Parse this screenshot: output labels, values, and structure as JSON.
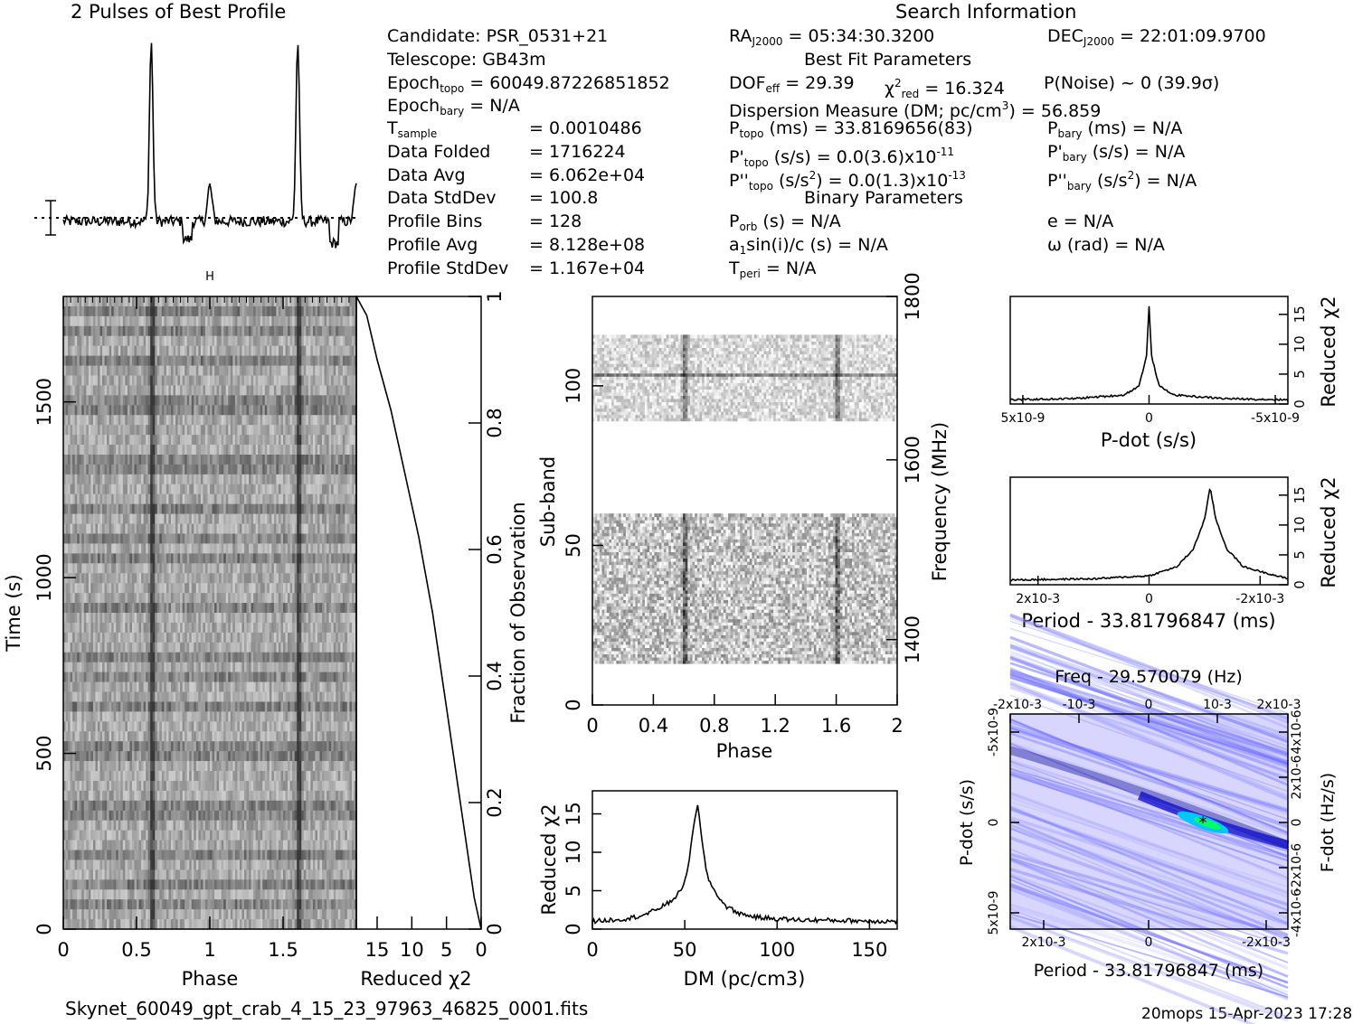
{
  "profile_title": "2 Pulses of Best Profile",
  "search_title": "Search Information",
  "footer_file": "Skynet_60049_gpt_crab_4_15_23_97963_46825_0001.fits",
  "footer_stamp": "20mops 15-Apr-2023 17:28",
  "candidate_info": {
    "candidate": "Candidate:  PSR_0531+21",
    "telescope": "Telescope:  GB43m",
    "epoch_topo_label": "Epoch",
    "epoch_topo_sub": "topo",
    "epoch_topo_val": " = 60049.87226851852",
    "epoch_bary_label": "Epoch",
    "epoch_bary_sub": "bary",
    "epoch_bary_val": " = N/A",
    "tsample_label": "T",
    "tsample_sub": "sample",
    "tsample_val": "=   0.0010486",
    "data_folded_label": "Data Folded",
    "data_folded_val": "=   1716224",
    "data_avg_label": "Data Avg",
    "data_avg_val": "=   6.062e+04",
    "data_std_label": "Data StdDev",
    "data_std_val": "=   100.8",
    "profile_bins_label": "Profile Bins",
    "profile_bins_val": "=   128",
    "profile_avg_label": "Profile Avg",
    "profile_avg_val": "=   8.128e+08",
    "profile_std_label": "Profile StdDev",
    "profile_std_val": "=   1.167e+04"
  },
  "search_info": {
    "ra_label": "RA",
    "ra_sub": "J2000",
    "ra_val": " = 05:34:30.3200",
    "dec_label": "DEC",
    "dec_sub": "J2000",
    "dec_val": " = 22:01:09.9700",
    "best_fit_title": "Best Fit Parameters",
    "dof_label": "DOF",
    "dof_sub": "eff",
    "dof_val": " = 29.39",
    "chi_label": "χ",
    "chi_sup": "2",
    "chi_sub": "red",
    "chi_val": " = 16.324",
    "pnoise": "P(Noise) ~ 0   (39.9σ)",
    "dm_text": "Dispersion Measure (DM; pc/cm",
    "dm_sup": "3",
    "dm_val": ") = 56.859",
    "ptopo_label": "P",
    "ptopo_sub": "topo",
    "ptopo_val": " (ms) =  33.8169656(83)",
    "pbary_label": "P",
    "pbary_sub": "bary",
    "pbary_val": " (ms) = N/A",
    "pdtopo_label": "P'",
    "pdtopo_sub": "topo",
    "pdtopo_val": " (s/s) = 0.0(3.6)x10",
    "pdtopo_exp": "-11",
    "pdbary_label": "P'",
    "pdbary_sub": "bary",
    "pdbary_val": " (s/s) = N/A",
    "pddtopo_label": "P''",
    "pddtopo_sub": "topo",
    "pddtopo_val": " (s/s",
    "pddtopo_sup": "2",
    "pddtopo_val2": ") = 0.0(1.3)x10",
    "pddtopo_exp": "-13",
    "pddbary_label": "P''",
    "pddbary_sub": "bary",
    "pddbary_val": " (s/s",
    "pddbary_sup": "2",
    "pddbary_val2": ") = N/A",
    "binary_title": "Binary Parameters",
    "porb_label": "P",
    "porb_sub": "orb",
    "porb_val": " (s) = N/A",
    "e_text": "e = N/A",
    "a1_label": "a",
    "a1_sub": "1",
    "a1_val": "sin(i)/c (s) = N/A",
    "omega_text": "ω (rad) = N/A",
    "tperi_label": "T",
    "tperi_sub": "peri",
    "tperi_val": " = N/A"
  },
  "chart_data": [
    {
      "id": "profile",
      "type": "line",
      "title": "2 Pulses of Best Profile",
      "x": "phase 0–2 (two pulses)",
      "peaks": [
        {
          "phase": 0.6,
          "height": 1.0
        },
        {
          "phase": 1.6,
          "height": 1.0
        }
      ],
      "interpulse": [
        {
          "phase": 1.0,
          "height": 0.2
        },
        {
          "phase": 2.0,
          "height": 0.2
        }
      ]
    },
    {
      "id": "time-phase",
      "type": "heatmap",
      "xlabel": "Phase",
      "ylabel": "Time (s)",
      "x_ticks": [
        "0",
        "0.5",
        "1",
        "1.5"
      ],
      "y_ticks": [
        "0",
        "500",
        "1000",
        "1500"
      ],
      "xlim": [
        0,
        2
      ],
      "ylim": [
        0,
        1800
      ],
      "pulse_columns": [
        0.6,
        1.6
      ]
    },
    {
      "id": "chi-vs-time",
      "type": "line",
      "xlabel": "Reduced χ2",
      "ylabel": "Fraction of Observation",
      "x_ticks": [
        "15",
        "10",
        "5",
        "0"
      ],
      "y_ticks": [
        "0",
        "0.2",
        "0.4",
        "0.6",
        "0.8",
        "1"
      ],
      "xlim": [
        18,
        0
      ],
      "ylim": [
        0,
        1
      ],
      "points": [
        [
          0,
          0
        ],
        [
          1,
          0.05
        ],
        [
          3,
          0.2
        ],
        [
          5,
          0.35
        ],
        [
          7,
          0.5
        ],
        [
          9,
          0.62
        ],
        [
          11,
          0.72
        ],
        [
          13,
          0.82
        ],
        [
          15,
          0.9
        ],
        [
          16.5,
          0.97
        ],
        [
          18,
          1
        ]
      ]
    },
    {
      "id": "subband-phase",
      "type": "heatmap",
      "xlabel": "Phase",
      "ylabel": "Sub-band",
      "y2label": "Frequency (MHz)",
      "x_ticks": [
        "0",
        "0.4",
        "0.8",
        "1.2",
        "1.6",
        "2"
      ],
      "y_ticks": [
        "0",
        "50",
        "100"
      ],
      "y2_ticks": [
        "1400",
        "1600",
        "1800"
      ],
      "xlim": [
        0,
        2
      ],
      "ylim": [
        0,
        128
      ],
      "bands_with_data": [
        [
          13,
          60
        ],
        [
          89,
          116
        ]
      ],
      "pulse_columns": [
        0.6,
        1.6
      ]
    },
    {
      "id": "dm-curve",
      "type": "line",
      "xlabel": "DM (pc/cm3)",
      "ylabel": "Reduced χ2",
      "x_ticks": [
        "0",
        "50",
        "100",
        "150"
      ],
      "y_ticks": [
        "0",
        "5",
        "10",
        "15"
      ],
      "xlim": [
        0,
        165
      ],
      "ylim": [
        0,
        18
      ],
      "points": [
        [
          0,
          1
        ],
        [
          10,
          1.2
        ],
        [
          20,
          1.4
        ],
        [
          30,
          2
        ],
        [
          38,
          3
        ],
        [
          42,
          3.5
        ],
        [
          48,
          5
        ],
        [
          52,
          8
        ],
        [
          55,
          14
        ],
        [
          56.9,
          16.3
        ],
        [
          59,
          12
        ],
        [
          62,
          7
        ],
        [
          66,
          5
        ],
        [
          72,
          3
        ],
        [
          80,
          2
        ],
        [
          90,
          1.5
        ],
        [
          110,
          1.2
        ],
        [
          140,
          1.1
        ],
        [
          165,
          1.0
        ]
      ]
    },
    {
      "id": "pdot-curve",
      "type": "line",
      "xlabel": "P-dot (s/s)",
      "ylabel": "Reduced χ2",
      "x_ticks": [
        "5x10-9",
        "0",
        "-5x10-9"
      ],
      "y_ticks": [
        "0",
        "5",
        "10",
        "15"
      ],
      "xlim": [
        5.5e-09,
        -5.5e-09
      ],
      "ylim": [
        0,
        18
      ],
      "points": [
        [
          5.5e-09,
          0.7
        ],
        [
          3e-09,
          0.9
        ],
        [
          1e-09,
          1.5
        ],
        [
          4e-10,
          3
        ],
        [
          1e-10,
          8
        ],
        [
          0,
          16.3
        ],
        [
          -1e-10,
          8
        ],
        [
          -4e-10,
          3
        ],
        [
          -1e-09,
          1.5
        ],
        [
          -3e-09,
          0.9
        ],
        [
          -5.5e-09,
          0.7
        ]
      ]
    },
    {
      "id": "period-curve",
      "type": "line",
      "xlabel": "Period - 33.81796847 (ms)",
      "ylabel": "Reduced χ2",
      "x_ticks": [
        "2x10-3",
        "0",
        "-2x10-3"
      ],
      "y_ticks": [
        "0",
        "5",
        "10",
        "15"
      ],
      "xlim": [
        0.0025,
        -0.0025
      ],
      "ylim": [
        0,
        18
      ],
      "points": [
        [
          0.0025,
          0.8
        ],
        [
          0.001,
          1
        ],
        [
          0,
          1.5
        ],
        [
          -0.0005,
          3
        ],
        [
          -0.0008,
          6
        ],
        [
          -0.001,
          11
        ],
        [
          -0.0011,
          16.3
        ],
        [
          -0.0012,
          11
        ],
        [
          -0.0014,
          6
        ],
        [
          -0.0017,
          3
        ],
        [
          -0.0025,
          1.0
        ]
      ]
    },
    {
      "id": "p-pdot-plane",
      "type": "heatmap",
      "title": "Freq - 29.570079 (Hz)",
      "xlabel": "Period - 33.81796847 (ms)",
      "ylabel": "P-dot (s/s)",
      "y2label": "F-dot (Hz/s)",
      "x_ticks": [
        "2x10-3",
        "0",
        "-2x10-3"
      ],
      "x2_ticks": [
        "-2x10-3",
        "-10-3",
        "0",
        "10-3",
        "2x10-3"
      ],
      "y_ticks": [
        "5x10-9",
        "0",
        "-5x10-9"
      ],
      "y2_ticks": [
        "-4x10-6",
        "-2x10-6",
        "0",
        "2x10-6",
        "4x10-6"
      ],
      "best": {
        "period_offset": -0.0011,
        "pdot": 0
      }
    }
  ],
  "colors": {
    "heat_low": "#ffffff",
    "heat_mid": "#5a5aff",
    "heat_high": "#00ff66",
    "gray_dark": "#000000"
  }
}
